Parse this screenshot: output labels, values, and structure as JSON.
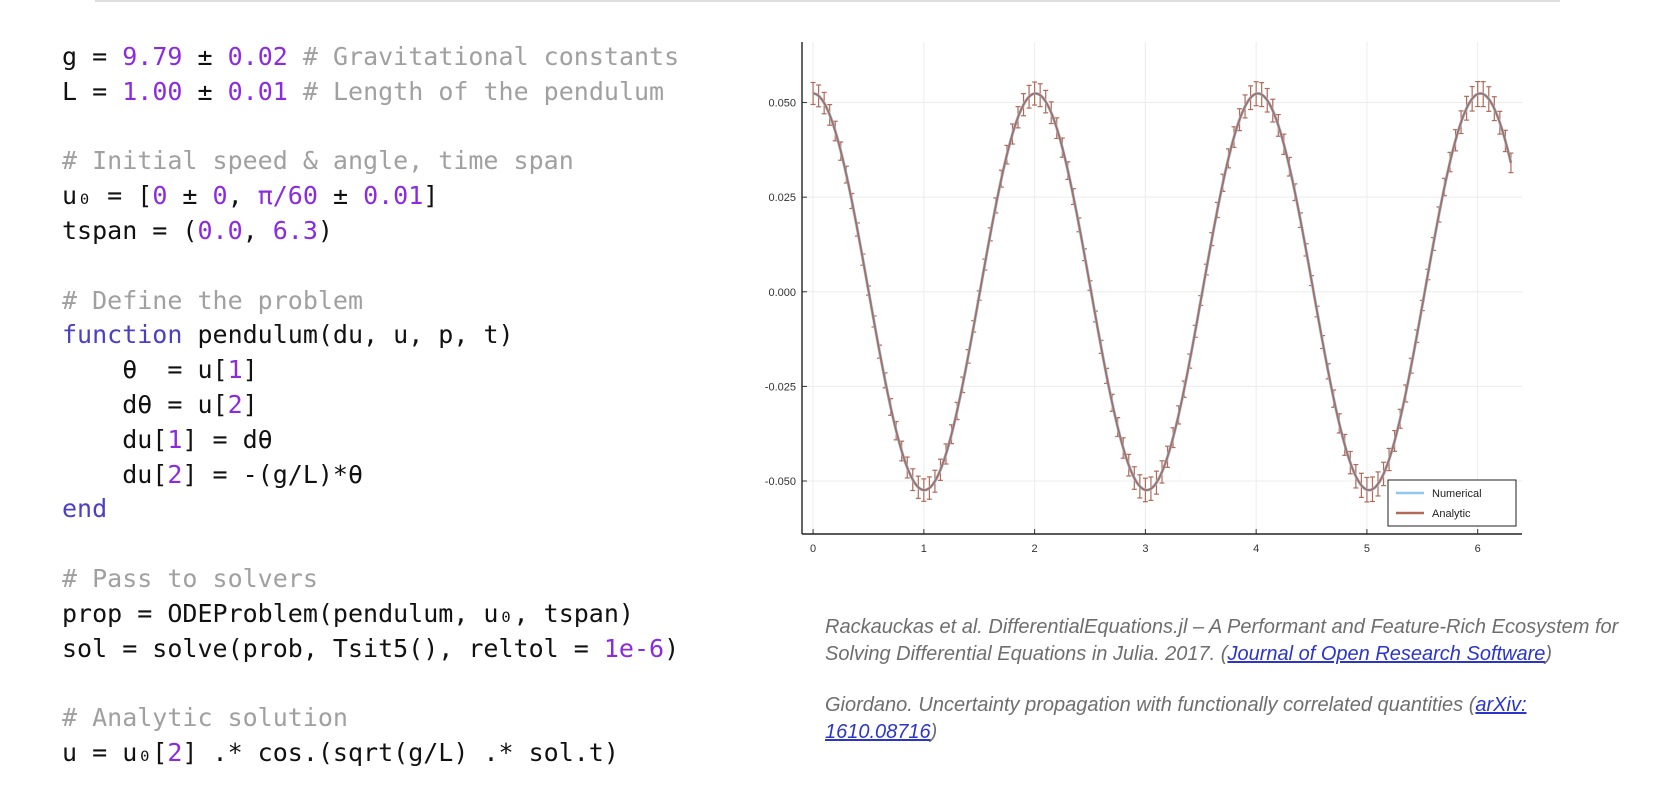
{
  "code": {
    "lines": [
      [
        {
          "t": "g = "
        },
        {
          "t": "9.79",
          "c": "nm"
        },
        {
          "t": " ± "
        },
        {
          "t": "0.02",
          "c": "nm"
        },
        {
          "t": " # Gravitational constants",
          "c": "cm"
        }
      ],
      [
        {
          "t": "L = "
        },
        {
          "t": "1.00",
          "c": "nm"
        },
        {
          "t": " ± "
        },
        {
          "t": "0.01",
          "c": "nm"
        },
        {
          "t": " # Length of the pendulum",
          "c": "cm"
        }
      ],
      [],
      [
        {
          "t": "# Initial speed & angle, time span",
          "c": "cm"
        }
      ],
      [
        {
          "t": "u₀ = ["
        },
        {
          "t": "0",
          "c": "nm"
        },
        {
          "t": " ± "
        },
        {
          "t": "0",
          "c": "nm"
        },
        {
          "t": ", "
        },
        {
          "t": "π/60",
          "c": "nm"
        },
        {
          "t": " ± "
        },
        {
          "t": "0.01",
          "c": "nm"
        },
        {
          "t": "]"
        }
      ],
      [
        {
          "t": "tspan = ("
        },
        {
          "t": "0.0",
          "c": "nm"
        },
        {
          "t": ", "
        },
        {
          "t": "6.3",
          "c": "nm"
        },
        {
          "t": ")"
        }
      ],
      [],
      [
        {
          "t": "# Define the problem",
          "c": "cm"
        }
      ],
      [
        {
          "t": "function",
          "c": "kw"
        },
        {
          "t": " pendulum(du, u, p, t)"
        }
      ],
      [
        {
          "t": "    θ  = u["
        },
        {
          "t": "1",
          "c": "nm"
        },
        {
          "t": "]"
        }
      ],
      [
        {
          "t": "    dθ = u["
        },
        {
          "t": "2",
          "c": "nm"
        },
        {
          "t": "]"
        }
      ],
      [
        {
          "t": "    du["
        },
        {
          "t": "1",
          "c": "nm"
        },
        {
          "t": "] = dθ"
        }
      ],
      [
        {
          "t": "    du["
        },
        {
          "t": "2",
          "c": "nm"
        },
        {
          "t": "] = -(g/L)*θ"
        }
      ],
      [
        {
          "t": "end",
          "c": "kw"
        }
      ],
      [],
      [
        {
          "t": "# Pass to solvers",
          "c": "cm"
        }
      ],
      [
        {
          "t": "prop = ODEProblem(pendulum, u₀, tspan)"
        }
      ],
      [
        {
          "t": "sol = solve(prob, Tsit5(), reltol = "
        },
        {
          "t": "1e-6",
          "c": "nm"
        },
        {
          "t": ")"
        }
      ],
      [],
      [
        {
          "t": "# Analytic solution",
          "c": "cm"
        }
      ],
      [
        {
          "t": "u = u₀["
        },
        {
          "t": "2",
          "c": "nm"
        },
        {
          "t": "] .* cos.(sqrt(g/L) .* sol.t)"
        }
      ]
    ]
  },
  "chart_data": {
    "type": "line",
    "x_ticks": [
      0,
      1,
      2,
      3,
      4,
      5,
      6
    ],
    "y_ticks": [
      -0.05,
      -0.025,
      0.0,
      0.025,
      0.05
    ],
    "y_tick_labels": [
      "-0.050",
      "-0.025",
      "0.000",
      "0.025",
      "0.050"
    ],
    "xlim": [
      -0.1,
      6.4
    ],
    "ylim": [
      -0.064,
      0.066
    ],
    "grid": true,
    "legend_position": "bottom-right",
    "series": [
      {
        "name": "Numerical",
        "color": "#8fc8ec",
        "amplitude": 0.0524,
        "omega": 3.129,
        "x_start": 0.0,
        "x_end": 6.3
      },
      {
        "name": "Analytic",
        "color": "#b06a58",
        "amplitude": 0.0524,
        "omega": 3.129,
        "x_start": 0.0,
        "x_end": 6.3,
        "error_bar_x_step": 0.05,
        "error_bar_base": 0.0012,
        "error_bar_slope": 0.0017
      }
    ]
  },
  "references": [
    {
      "text": "Rackauckas et al. DifferentialEquations.jl – A Performant and Feature-Rich Ecosystem for Solving Differential Equations in Julia. 2017. (",
      "link": "Journal of Open Research Software",
      "suffix": ")"
    },
    {
      "text": "Giordano. Uncertainty propagation with functionally correlated quantities (",
      "link": "arXiv: 1610.08716",
      "suffix": ")"
    }
  ]
}
